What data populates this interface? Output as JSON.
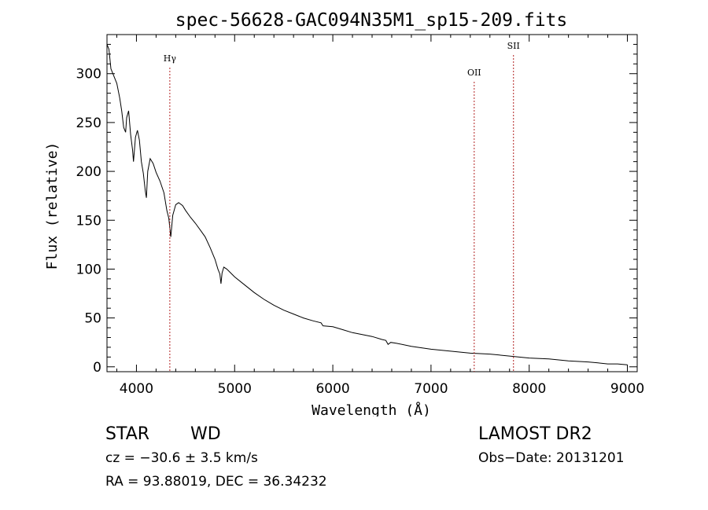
{
  "chart_data": {
    "type": "line",
    "title": "spec-56628-GAC094N35M1_sp15-209.fits",
    "xlabel": "Wavelength (Å)",
    "ylabel": "Flux (relative)",
    "xlim": [
      3700,
      9100
    ],
    "ylim": [
      -5,
      340
    ],
    "xticks": [
      4000,
      5000,
      6000,
      7000,
      8000,
      9000
    ],
    "yticks": [
      0,
      50,
      100,
      150,
      200,
      250,
      300
    ],
    "grid": false,
    "line_color": "#000000",
    "marker_color": "#b22222",
    "series": [
      {
        "x": [
          3700,
          3720,
          3740,
          3760,
          3800,
          3830,
          3850,
          3870,
          3890,
          3900,
          3920,
          3940,
          3960,
          3970,
          3990,
          4010,
          4030,
          4050,
          4070,
          4090,
          4101,
          4115,
          4140,
          4170,
          4200,
          4240,
          4280,
          4310,
          4330,
          4340,
          4350,
          4370,
          4400,
          4430,
          4470,
          4500,
          4550,
          4600,
          4650,
          4700,
          4750,
          4800,
          4830,
          4850,
          4861,
          4872,
          4890,
          4920,
          4960,
          5000,
          5100,
          5200,
          5300,
          5400,
          5500,
          5600,
          5700,
          5800,
          5880,
          5900,
          6000,
          6100,
          6200,
          6300,
          6400,
          6500,
          6540,
          6563,
          6590,
          6650,
          6800,
          7000,
          7200,
          7400,
          7600,
          7800,
          8000,
          8200,
          8400,
          8600,
          8700,
          8800,
          8900,
          9000
        ],
        "y": [
          330,
          325,
          305,
          300,
          290,
          275,
          262,
          245,
          240,
          255,
          262,
          238,
          222,
          210,
          235,
          242,
          232,
          210,
          198,
          180,
          173,
          200,
          213,
          208,
          199,
          190,
          178,
          160,
          152,
          142,
          133,
          155,
          166,
          168,
          165,
          160,
          153,
          147,
          140,
          133,
          122,
          110,
          100,
          95,
          85,
          96,
          102,
          100,
          96,
          92,
          84,
          76,
          69,
          63,
          58,
          54,
          50,
          47,
          45,
          42,
          41,
          38,
          35,
          33,
          31,
          28,
          27,
          23,
          25,
          24,
          21,
          18,
          16,
          14,
          13,
          11,
          9,
          8,
          6,
          5,
          4,
          3,
          3,
          2
        ]
      }
    ],
    "markers": [
      {
        "label": "Hγ",
        "x": 4340
      },
      {
        "label": "OII",
        "x": 7440
      },
      {
        "label": "SII",
        "x": 7840
      }
    ]
  },
  "info": {
    "object_type": "STAR",
    "subclass": "WD",
    "survey": "LAMOST DR2",
    "cz": "cz = −30.6 ± 3.5 km/s",
    "obs_date": "Obs−Date: 20131201",
    "coords": "RA =  93.88019, DEC =  36.34232"
  }
}
